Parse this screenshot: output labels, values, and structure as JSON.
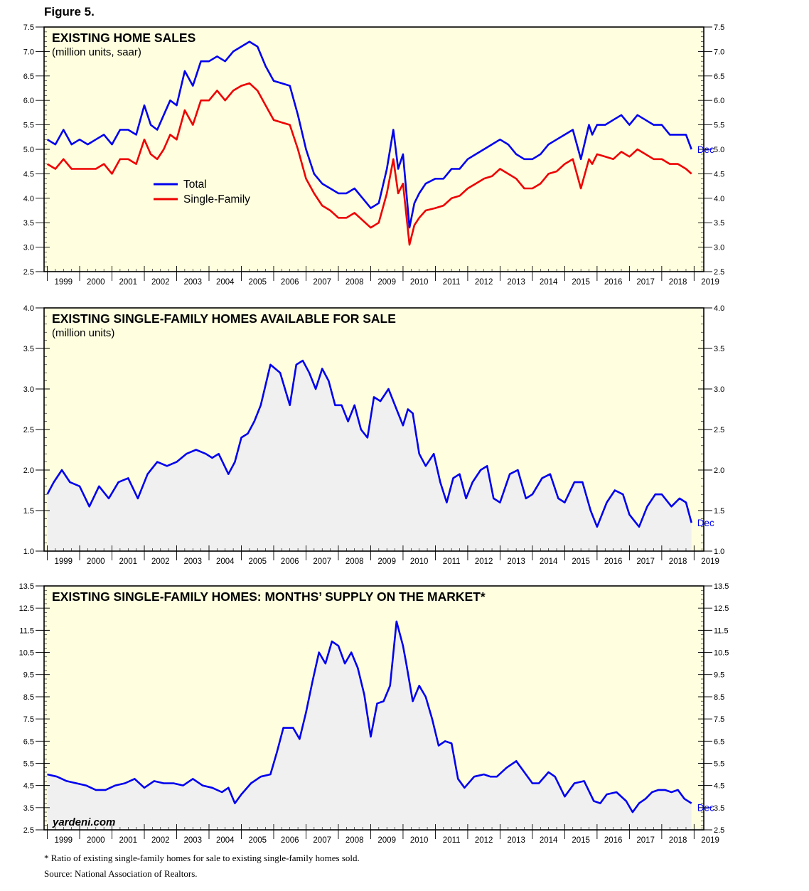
{
  "figure_label": "Figure 5.",
  "watermark": "yardeni.com",
  "footnote": "* Ratio of existing single-family homes for sale to existing single-family homes sold.",
  "source": "Source: National Association of Realtors.",
  "colors": {
    "blue": "#0000ee",
    "red": "#ee0000",
    "panel_bg": "#ffffe0",
    "area_fill": "#f0f0f0"
  },
  "chart_data": [
    {
      "type": "line",
      "title": "EXISTING HOME SALES",
      "subtitle": "(million units, saar)",
      "end_label": "Dec",
      "ylim": [
        2.5,
        7.5
      ],
      "yticks": [
        2.5,
        3.0,
        3.5,
        4.0,
        4.5,
        5.0,
        5.5,
        6.0,
        6.5,
        7.0,
        7.5
      ],
      "ytick_labels": [
        "2.5",
        "3.0",
        "3.5",
        "4.0",
        "4.5",
        "5.0",
        "5.5",
        "6.0",
        "6.5",
        "7.0",
        "7.5"
      ],
      "x_labels": [
        "1999",
        "2000",
        "2001",
        "2002",
        "2003",
        "2004",
        "2005",
        "2006",
        "2007",
        "2008",
        "2009",
        "2010",
        "2011",
        "2012",
        "2013",
        "2014",
        "2015",
        "2016",
        "2017",
        "2018",
        "2019"
      ],
      "x_range": [
        1999,
        2019
      ],
      "legend": "middle-left",
      "series": [
        {
          "name": "Total",
          "color": "#0000ee",
          "x": [
            1999.0,
            1999.25,
            1999.5,
            1999.75,
            2000.0,
            2000.25,
            2000.5,
            2000.75,
            2001.0,
            2001.25,
            2001.5,
            2001.75,
            2002.0,
            2002.2,
            2002.4,
            2002.6,
            2002.8,
            2003.0,
            2003.25,
            2003.5,
            2003.75,
            2004.0,
            2004.25,
            2004.5,
            2004.75,
            2005.0,
            2005.25,
            2005.5,
            2005.75,
            2006.0,
            2006.25,
            2006.5,
            2006.75,
            2007.0,
            2007.25,
            2007.5,
            2007.75,
            2008.0,
            2008.25,
            2008.5,
            2008.75,
            2009.0,
            2009.25,
            2009.5,
            2009.7,
            2009.85,
            2010.0,
            2010.2,
            2010.35,
            2010.5,
            2010.7,
            2011.0,
            2011.25,
            2011.5,
            2011.75,
            2012.0,
            2012.25,
            2012.5,
            2012.75,
            2013.0,
            2013.25,
            2013.5,
            2013.75,
            2014.0,
            2014.25,
            2014.5,
            2014.75,
            2015.0,
            2015.25,
            2015.5,
            2015.75,
            2015.85,
            2016.0,
            2016.25,
            2016.5,
            2016.75,
            2017.0,
            2017.25,
            2017.5,
            2017.75,
            2018.0,
            2018.25,
            2018.5,
            2018.75,
            2018.92
          ],
          "y": [
            5.2,
            5.1,
            5.4,
            5.1,
            5.2,
            5.1,
            5.2,
            5.3,
            5.1,
            5.4,
            5.4,
            5.3,
            5.9,
            5.5,
            5.4,
            5.7,
            6.0,
            5.9,
            6.6,
            6.3,
            6.8,
            6.8,
            6.9,
            6.8,
            7.0,
            7.1,
            7.2,
            7.1,
            6.7,
            6.4,
            6.35,
            6.3,
            5.7,
            5.0,
            4.5,
            4.3,
            4.2,
            4.1,
            4.1,
            4.2,
            4.0,
            3.8,
            3.9,
            4.6,
            5.4,
            4.6,
            4.9,
            3.4,
            3.9,
            4.1,
            4.3,
            4.4,
            4.4,
            4.6,
            4.6,
            4.8,
            4.9,
            5.0,
            5.1,
            5.2,
            5.1,
            4.9,
            4.8,
            4.8,
            4.9,
            5.1,
            5.2,
            5.3,
            5.4,
            4.8,
            5.5,
            5.3,
            5.5,
            5.5,
            5.6,
            5.7,
            5.5,
            5.7,
            5.6,
            5.5,
            5.5,
            5.3,
            5.3,
            5.3,
            5.0
          ]
        },
        {
          "name": "Single-Family",
          "color": "#ee0000",
          "x": [
            1999.0,
            1999.25,
            1999.5,
            1999.75,
            2000.0,
            2000.25,
            2000.5,
            2000.75,
            2001.0,
            2001.25,
            2001.5,
            2001.75,
            2002.0,
            2002.2,
            2002.4,
            2002.6,
            2002.8,
            2003.0,
            2003.25,
            2003.5,
            2003.75,
            2004.0,
            2004.25,
            2004.5,
            2004.75,
            2005.0,
            2005.25,
            2005.5,
            2005.75,
            2006.0,
            2006.25,
            2006.5,
            2006.75,
            2007.0,
            2007.25,
            2007.5,
            2007.75,
            2008.0,
            2008.25,
            2008.5,
            2008.75,
            2009.0,
            2009.25,
            2009.5,
            2009.7,
            2009.85,
            2010.0,
            2010.2,
            2010.35,
            2010.5,
            2010.7,
            2011.0,
            2011.25,
            2011.5,
            2011.75,
            2012.0,
            2012.25,
            2012.5,
            2012.75,
            2013.0,
            2013.25,
            2013.5,
            2013.75,
            2014.0,
            2014.25,
            2014.5,
            2014.75,
            2015.0,
            2015.25,
            2015.5,
            2015.75,
            2015.85,
            2016.0,
            2016.25,
            2016.5,
            2016.75,
            2017.0,
            2017.25,
            2017.5,
            2017.75,
            2018.0,
            2018.25,
            2018.5,
            2018.75,
            2018.92
          ],
          "y": [
            4.7,
            4.6,
            4.8,
            4.6,
            4.6,
            4.6,
            4.6,
            4.7,
            4.5,
            4.8,
            4.8,
            4.7,
            5.2,
            4.9,
            4.8,
            5.0,
            5.3,
            5.2,
            5.8,
            5.5,
            6.0,
            6.0,
            6.2,
            6.0,
            6.2,
            6.3,
            6.35,
            6.2,
            5.9,
            5.6,
            5.55,
            5.5,
            5.0,
            4.4,
            4.1,
            3.85,
            3.75,
            3.6,
            3.6,
            3.7,
            3.55,
            3.4,
            3.5,
            4.1,
            4.8,
            4.1,
            4.3,
            3.05,
            3.45,
            3.6,
            3.75,
            3.8,
            3.85,
            4.0,
            4.05,
            4.2,
            4.3,
            4.4,
            4.45,
            4.6,
            4.5,
            4.4,
            4.2,
            4.2,
            4.3,
            4.5,
            4.55,
            4.7,
            4.8,
            4.2,
            4.8,
            4.7,
            4.9,
            4.85,
            4.8,
            4.95,
            4.85,
            5.0,
            4.9,
            4.8,
            4.8,
            4.7,
            4.7,
            4.6,
            4.5
          ]
        }
      ]
    },
    {
      "type": "area",
      "title": "EXISTING SINGLE-FAMILY HOMES AVAILABLE FOR SALE",
      "subtitle": "(million units)",
      "end_label": "Dec",
      "ylim": [
        1.0,
        4.0
      ],
      "yticks": [
        1.0,
        1.5,
        2.0,
        2.5,
        3.0,
        3.5,
        4.0
      ],
      "ytick_labels": [
        "1.0",
        "1.5",
        "2.0",
        "2.5",
        "3.0",
        "3.5",
        "4.0"
      ],
      "x_labels": [
        "1999",
        "2000",
        "2001",
        "2002",
        "2003",
        "2004",
        "2005",
        "2006",
        "2007",
        "2008",
        "2009",
        "2010",
        "2011",
        "2012",
        "2013",
        "2014",
        "2015",
        "2016",
        "2017",
        "2018",
        "2019"
      ],
      "x_range": [
        1999,
        2019
      ],
      "series": [
        {
          "name": "",
          "color": "#0000ee",
          "x": [
            1999.0,
            1999.2,
            1999.45,
            1999.7,
            2000.0,
            2000.3,
            2000.6,
            2000.9,
            2001.2,
            2001.5,
            2001.8,
            2002.1,
            2002.4,
            2002.7,
            2003.0,
            2003.3,
            2003.6,
            2003.9,
            2004.1,
            2004.3,
            2004.6,
            2004.8,
            2005.0,
            2005.2,
            2005.4,
            2005.6,
            2005.9,
            2006.2,
            2006.5,
            2006.7,
            2006.9,
            2007.1,
            2007.3,
            2007.5,
            2007.7,
            2007.9,
            2008.1,
            2008.3,
            2008.5,
            2008.7,
            2008.9,
            2009.1,
            2009.3,
            2009.55,
            2009.8,
            2010.0,
            2010.15,
            2010.3,
            2010.5,
            2010.7,
            2010.95,
            2011.15,
            2011.35,
            2011.55,
            2011.75,
            2011.95,
            2012.15,
            2012.4,
            2012.6,
            2012.8,
            2013.0,
            2013.3,
            2013.55,
            2013.8,
            2014.0,
            2014.3,
            2014.55,
            2014.8,
            2015.0,
            2015.3,
            2015.55,
            2015.8,
            2016.0,
            2016.3,
            2016.55,
            2016.8,
            2017.0,
            2017.3,
            2017.55,
            2017.8,
            2018.0,
            2018.3,
            2018.55,
            2018.75,
            2018.92
          ],
          "y": [
            1.7,
            1.85,
            2.0,
            1.85,
            1.8,
            1.55,
            1.8,
            1.65,
            1.85,
            1.9,
            1.65,
            1.95,
            2.1,
            2.05,
            2.1,
            2.2,
            2.25,
            2.2,
            2.15,
            2.2,
            1.95,
            2.1,
            2.4,
            2.45,
            2.6,
            2.8,
            3.3,
            3.2,
            2.8,
            3.3,
            3.35,
            3.2,
            3.0,
            3.25,
            3.1,
            2.8,
            2.8,
            2.6,
            2.8,
            2.5,
            2.4,
            2.9,
            2.85,
            3.0,
            2.75,
            2.55,
            2.75,
            2.7,
            2.2,
            2.05,
            2.2,
            1.85,
            1.6,
            1.9,
            1.95,
            1.65,
            1.85,
            2.0,
            2.05,
            1.65,
            1.6,
            1.95,
            2.0,
            1.65,
            1.7,
            1.9,
            1.95,
            1.65,
            1.6,
            1.85,
            1.85,
            1.5,
            1.3,
            1.6,
            1.75,
            1.7,
            1.45,
            1.3,
            1.55,
            1.7,
            1.7,
            1.55,
            1.65,
            1.6,
            1.35
          ]
        }
      ]
    },
    {
      "type": "area",
      "title": "EXISTING SINGLE-FAMILY HOMES: MONTHS’ SUPPLY ON THE MARKET*",
      "subtitle": "",
      "end_label": "Dec",
      "ylim": [
        2.5,
        13.5
      ],
      "yticks": [
        2.5,
        3.5,
        4.5,
        5.5,
        6.5,
        7.5,
        8.5,
        9.5,
        10.5,
        11.5,
        12.5,
        13.5
      ],
      "ytick_labels": [
        "2.5",
        "3.5",
        "4.5",
        "5.5",
        "6.5",
        "7.5",
        "8.5",
        "9.5",
        "10.5",
        "11.5",
        "12.5",
        "13.5"
      ],
      "x_labels": [
        "1999",
        "2000",
        "2001",
        "2002",
        "2003",
        "2004",
        "2005",
        "2006",
        "2007",
        "2008",
        "2009",
        "2010",
        "2011",
        "2012",
        "2013",
        "2014",
        "2015",
        "2016",
        "2017",
        "2018",
        "2019"
      ],
      "x_range": [
        1999,
        2019
      ],
      "series": [
        {
          "name": "",
          "color": "#0000ee",
          "x": [
            1999.0,
            1999.3,
            1999.6,
            1999.9,
            2000.2,
            2000.5,
            2000.8,
            2001.1,
            2001.4,
            2001.7,
            2002.0,
            2002.3,
            2002.6,
            2002.9,
            2003.2,
            2003.5,
            2003.8,
            2004.1,
            2004.4,
            2004.6,
            2004.8,
            2005.0,
            2005.3,
            2005.6,
            2005.9,
            2006.1,
            2006.3,
            2006.6,
            2006.8,
            2007.0,
            2007.2,
            2007.4,
            2007.6,
            2007.8,
            2008.0,
            2008.2,
            2008.4,
            2008.6,
            2008.8,
            2009.0,
            2009.2,
            2009.4,
            2009.6,
            2009.8,
            2010.0,
            2010.1,
            2010.3,
            2010.5,
            2010.7,
            2010.9,
            2011.1,
            2011.3,
            2011.5,
            2011.7,
            2011.9,
            2012.2,
            2012.5,
            2012.7,
            2012.9,
            2013.2,
            2013.5,
            2013.8,
            2014.0,
            2014.2,
            2014.5,
            2014.7,
            2015.0,
            2015.3,
            2015.6,
            2015.9,
            2016.1,
            2016.3,
            2016.6,
            2016.9,
            2017.1,
            2017.3,
            2017.5,
            2017.7,
            2017.9,
            2018.1,
            2018.3,
            2018.5,
            2018.7,
            2018.92
          ],
          "y": [
            5.0,
            4.9,
            4.7,
            4.6,
            4.5,
            4.3,
            4.3,
            4.5,
            4.6,
            4.8,
            4.4,
            4.7,
            4.6,
            4.6,
            4.5,
            4.8,
            4.5,
            4.4,
            4.2,
            4.4,
            3.7,
            4.1,
            4.6,
            4.9,
            5.0,
            6.0,
            7.1,
            7.1,
            6.6,
            7.8,
            9.2,
            10.5,
            10.0,
            11.0,
            10.8,
            10.0,
            10.5,
            9.8,
            8.6,
            6.7,
            8.2,
            8.3,
            9.0,
            11.9,
            10.8,
            10.0,
            8.3,
            9.0,
            8.5,
            7.5,
            6.3,
            6.5,
            6.4,
            4.8,
            4.4,
            4.9,
            5.0,
            4.9,
            4.9,
            5.3,
            5.6,
            5.0,
            4.6,
            4.6,
            5.1,
            4.9,
            4.0,
            4.6,
            4.7,
            3.8,
            3.7,
            4.1,
            4.2,
            3.8,
            3.3,
            3.7,
            3.9,
            4.2,
            4.3,
            4.3,
            4.2,
            4.3,
            3.9,
            3.7
          ]
        }
      ]
    }
  ]
}
